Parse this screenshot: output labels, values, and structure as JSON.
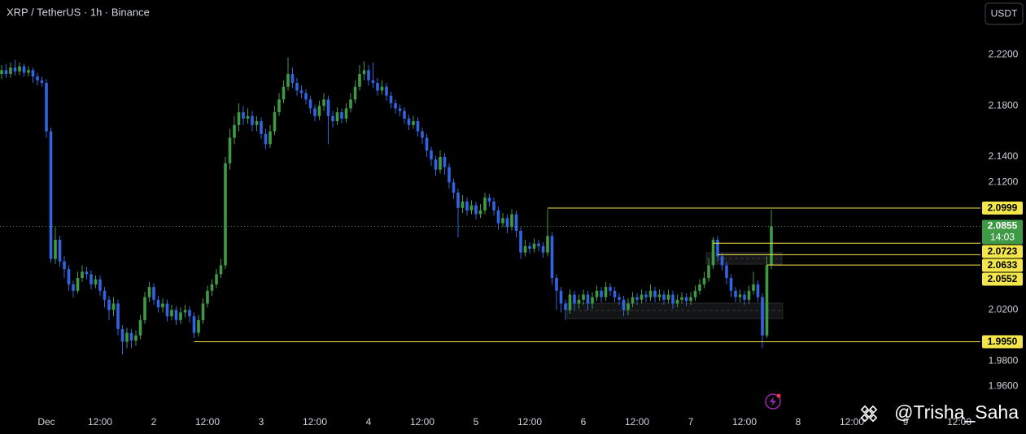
{
  "chart_data": {
    "type": "candlestick",
    "title": "XRP / TetherUS · 1h · Binance",
    "currency": "USDT",
    "categories": [
      null,
      null,
      null,
      null,
      null,
      null,
      null,
      null,
      null,
      null,
      "Dec",
      null,
      null,
      null,
      null,
      null,
      null,
      null,
      null,
      null,
      null,
      null,
      "12:00",
      null,
      null,
      null,
      null,
      null,
      null,
      null,
      null,
      null,
      null,
      null,
      "2",
      null,
      null,
      null,
      null,
      null,
      null,
      null,
      null,
      null,
      null,
      null,
      "12:00",
      null,
      null,
      null,
      null,
      null,
      null,
      null,
      null,
      null,
      null,
      null,
      "3",
      null,
      null,
      null,
      null,
      null,
      null,
      null,
      null,
      null,
      null,
      null,
      "12:00",
      null,
      null,
      null,
      null,
      null,
      null,
      null,
      null,
      null,
      null,
      null,
      "4",
      null,
      null,
      null,
      null,
      null,
      null,
      null,
      null,
      null,
      null,
      null,
      "12:00",
      null,
      null,
      null,
      null,
      null,
      null,
      null,
      null,
      null,
      null,
      null,
      "5",
      null,
      null,
      null,
      null,
      null,
      null,
      null,
      null,
      null,
      null,
      null,
      "12:00",
      null,
      null,
      null,
      null,
      null,
      null,
      null,
      null,
      null,
      null,
      null,
      "6",
      null,
      null,
      null,
      null,
      null,
      null,
      null,
      null,
      null,
      null,
      null,
      "12:00",
      null,
      null,
      null,
      null,
      null,
      null,
      null,
      null,
      null,
      null,
      null,
      "7",
      null,
      null,
      null,
      null,
      null,
      null,
      null,
      null,
      null,
      null,
      null,
      "12:00",
      null,
      null,
      null,
      null,
      null,
      null,
      null,
      null,
      null,
      null,
      null,
      "8",
      null,
      null,
      null,
      null,
      null,
      null,
      null,
      null,
      null,
      null,
      null,
      "12:00",
      null,
      null,
      null,
      null,
      null,
      null,
      null,
      null,
      null,
      null,
      null,
      "9",
      null,
      null,
      null,
      null,
      null,
      null,
      null,
      null,
      null,
      null,
      null,
      "12:00",
      null,
      null,
      null
    ],
    "open": [
      2.205,
      2.208,
      2.205,
      2.21,
      2.207,
      2.211,
      2.206,
      2.208,
      2.203,
      2.2,
      2.198,
      2.16,
      2.06,
      2.075,
      2.058,
      2.052,
      2.04,
      2.035,
      2.045,
      2.05,
      2.048,
      2.04,
      2.044,
      2.035,
      2.028,
      2.02,
      2.025,
      2.005,
      1.995,
      2.002,
      1.996,
      2.0,
      2.012,
      2.03,
      2.038,
      2.028,
      2.022,
      2.025,
      2.015,
      2.02,
      2.012,
      2.018,
      2.02,
      2.015,
      2.002,
      2.012,
      2.025,
      2.035,
      2.04,
      2.048,
      2.055,
      2.135,
      2.155,
      2.165,
      2.175,
      2.17,
      2.172,
      2.165,
      2.168,
      2.158,
      2.15,
      2.16,
      2.175,
      2.185,
      2.195,
      2.205,
      2.198,
      2.192,
      2.19,
      2.185,
      2.178,
      2.172,
      2.18,
      2.185,
      2.172,
      2.168,
      2.175,
      2.17,
      2.178,
      2.185,
      2.195,
      2.205,
      2.208,
      2.2,
      2.198,
      2.192,
      2.195,
      2.188,
      2.182,
      2.178,
      2.176,
      2.17,
      2.165,
      2.168,
      2.16,
      2.155,
      2.145,
      2.138,
      2.13,
      2.14,
      2.132,
      2.12,
      2.112,
      2.1,
      2.105,
      2.098,
      2.102,
      2.095,
      2.098,
      2.108,
      2.105,
      2.098,
      2.088,
      2.092,
      2.085,
      2.095,
      2.082,
      2.065,
      2.07,
      2.068,
      2.072,
      2.07,
      2.065,
      2.078,
      2.045,
      2.035,
      2.025,
      2.02,
      2.032,
      2.025,
      2.028,
      2.032,
      2.025,
      2.03,
      2.035,
      2.03,
      2.038,
      2.035,
      2.03,
      2.028,
      2.02,
      2.025,
      2.03,
      2.028,
      2.032,
      2.03,
      2.035,
      2.03,
      2.032,
      2.028,
      2.032,
      2.025,
      2.028,
      2.03,
      2.027,
      2.03,
      2.035,
      2.04,
      2.045,
      2.055,
      2.075,
      2.062,
      2.055,
      2.045,
      2.035,
      2.03,
      2.032,
      2.028,
      2.035,
      2.04,
      2.03,
      2.0,
      2.055,
      null,
      null,
      null,
      null,
      null,
      null,
      null,
      null,
      null,
      null,
      null,
      null,
      null,
      null,
      null,
      null,
      null,
      null,
      null,
      null,
      null,
      null,
      null,
      null,
      null,
      null,
      null,
      null,
      null,
      null,
      null,
      null,
      null,
      null,
      null,
      null,
      null,
      null,
      null,
      null,
      null,
      null,
      null,
      null,
      null
    ],
    "high": [
      2.212,
      2.213,
      2.214,
      2.216,
      2.214,
      2.213,
      2.211,
      2.21,
      2.206,
      2.203,
      2.201,
      2.163,
      2.085,
      2.078,
      2.062,
      2.055,
      2.043,
      2.05,
      2.055,
      2.054,
      2.051,
      2.047,
      2.047,
      2.038,
      2.031,
      2.03,
      2.028,
      2.008,
      2.006,
      2.005,
      2.004,
      2.016,
      2.034,
      2.042,
      2.041,
      2.031,
      2.029,
      2.028,
      2.024,
      2.023,
      2.022,
      2.024,
      2.023,
      2.018,
      2.016,
      2.029,
      2.039,
      2.044,
      2.052,
      2.06,
      2.14,
      2.162,
      2.172,
      2.182,
      2.18,
      2.178,
      2.176,
      2.172,
      2.171,
      2.162,
      2.165,
      2.18,
      2.19,
      2.2,
      2.218,
      2.21,
      2.202,
      2.196,
      2.193,
      2.188,
      2.181,
      2.184,
      2.19,
      2.188,
      2.176,
      2.179,
      2.178,
      2.182,
      2.19,
      2.2,
      2.212,
      2.215,
      2.212,
      2.214,
      2.202,
      2.2,
      2.198,
      2.191,
      2.185,
      2.181,
      2.179,
      2.173,
      2.172,
      2.171,
      2.163,
      2.158,
      2.148,
      2.141,
      2.145,
      2.143,
      2.135,
      2.123,
      2.115,
      2.11,
      2.108,
      2.106,
      2.105,
      2.103,
      2.112,
      2.111,
      2.108,
      2.101,
      2.096,
      2.095,
      2.099,
      2.098,
      2.085,
      2.075,
      2.073,
      2.076,
      2.075,
      2.073,
      2.099,
      2.081,
      2.048,
      2.038,
      2.028,
      2.036,
      2.035,
      2.032,
      2.036,
      2.035,
      2.034,
      2.039,
      2.038,
      2.042,
      2.041,
      2.038,
      2.033,
      2.031,
      2.029,
      2.034,
      2.033,
      2.036,
      2.035,
      2.04,
      2.038,
      2.036,
      2.035,
      2.036,
      2.035,
      2.032,
      2.034,
      2.033,
      2.034,
      2.039,
      2.044,
      2.05,
      2.06,
      2.077,
      2.078,
      2.065,
      2.058,
      2.048,
      2.038,
      2.036,
      2.035,
      2.039,
      2.05,
      2.043,
      2.033,
      2.062,
      2.0985,
      null,
      null,
      null,
      null,
      null,
      null,
      null,
      null,
      null,
      null,
      null,
      null,
      null,
      null,
      null,
      null,
      null,
      null,
      null,
      null,
      null,
      null,
      null,
      null,
      null,
      null,
      null,
      null,
      null,
      null,
      null,
      null,
      null,
      null,
      null,
      null,
      null,
      null,
      null,
      null,
      null,
      null,
      null,
      null,
      null
    ],
    "low": [
      2.201,
      2.202,
      2.202,
      2.204,
      2.204,
      2.203,
      2.203,
      2.198,
      2.196,
      2.195,
      2.155,
      2.057,
      2.056,
      2.054,
      2.045,
      2.035,
      2.03,
      2.033,
      2.042,
      2.044,
      2.036,
      2.037,
      2.031,
      2.022,
      2.012,
      2.015,
      2.0,
      1.985,
      1.99,
      1.99,
      1.992,
      1.997,
      2.009,
      2.026,
      2.024,
      2.018,
      2.018,
      2.011,
      2.012,
      2.008,
      2.009,
      2.014,
      2.01,
      1.998,
      1.999,
      2.009,
      2.022,
      2.031,
      2.037,
      2.045,
      2.052,
      2.13,
      2.15,
      2.16,
      2.165,
      2.166,
      2.16,
      2.16,
      2.154,
      2.146,
      2.147,
      2.157,
      2.172,
      2.182,
      2.192,
      2.194,
      2.188,
      2.186,
      2.181,
      2.174,
      2.168,
      2.169,
      2.176,
      2.15,
      2.163,
      2.165,
      2.166,
      2.167,
      2.175,
      2.182,
      2.192,
      2.2,
      2.196,
      2.194,
      2.188,
      2.189,
      2.184,
      2.178,
      2.174,
      2.172,
      2.166,
      2.161,
      2.162,
      2.156,
      2.15,
      2.14,
      2.133,
      2.125,
      2.127,
      2.126,
      2.115,
      2.107,
      2.077,
      2.096,
      2.094,
      2.095,
      2.091,
      2.092,
      2.095,
      2.101,
      2.094,
      2.083,
      2.085,
      2.08,
      2.082,
      2.077,
      2.06,
      2.062,
      2.064,
      2.065,
      2.066,
      2.061,
      2.062,
      2.04,
      2.02,
      2.018,
      2.012,
      2.017,
      2.02,
      2.021,
      2.024,
      2.02,
      2.021,
      2.027,
      2.026,
      2.027,
      2.031,
      2.026,
      2.024,
      2.015,
      2.016,
      2.022,
      2.024,
      2.025,
      2.026,
      2.027,
      2.026,
      2.027,
      2.024,
      2.025,
      2.021,
      2.022,
      2.025,
      2.023,
      2.024,
      2.027,
      2.032,
      2.037,
      2.042,
      2.052,
      2.058,
      2.051,
      2.04,
      2.03,
      2.026,
      2.026,
      2.024,
      2.025,
      2.032,
      2.026,
      1.99,
      1.998,
      2.052,
      null,
      null,
      null,
      null,
      null,
      null,
      null,
      null,
      null,
      null,
      null,
      null,
      null,
      null,
      null,
      null,
      null,
      null,
      null,
      null,
      null,
      null,
      null,
      null,
      null,
      null,
      null,
      null,
      null,
      null,
      null,
      null,
      null,
      null,
      null,
      null,
      null,
      null,
      null,
      null,
      null,
      null,
      null,
      null,
      null
    ],
    "close": [
      2.208,
      2.205,
      2.21,
      2.207,
      2.211,
      2.206,
      2.208,
      2.203,
      2.2,
      2.198,
      2.16,
      2.06,
      2.075,
      2.058,
      2.052,
      2.04,
      2.035,
      2.045,
      2.05,
      2.048,
      2.04,
      2.044,
      2.035,
      2.028,
      2.02,
      2.025,
      2.005,
      1.995,
      2.002,
      1.996,
      2.0,
      2.012,
      2.03,
      2.038,
      2.028,
      2.022,
      2.025,
      2.015,
      2.02,
      2.012,
      2.018,
      2.02,
      2.015,
      2.002,
      2.012,
      2.025,
      2.035,
      2.04,
      2.048,
      2.055,
      2.135,
      2.155,
      2.165,
      2.175,
      2.17,
      2.172,
      2.165,
      2.168,
      2.158,
      2.15,
      2.16,
      2.175,
      2.185,
      2.195,
      2.205,
      2.198,
      2.192,
      2.19,
      2.185,
      2.178,
      2.172,
      2.18,
      2.185,
      2.172,
      2.168,
      2.175,
      2.17,
      2.178,
      2.185,
      2.195,
      2.205,
      2.208,
      2.2,
      2.198,
      2.192,
      2.195,
      2.188,
      2.182,
      2.178,
      2.176,
      2.17,
      2.165,
      2.168,
      2.16,
      2.155,
      2.145,
      2.138,
      2.13,
      2.14,
      2.132,
      2.12,
      2.112,
      2.1,
      2.105,
      2.098,
      2.102,
      2.095,
      2.098,
      2.108,
      2.105,
      2.098,
      2.088,
      2.092,
      2.085,
      2.095,
      2.082,
      2.065,
      2.07,
      2.068,
      2.072,
      2.07,
      2.065,
      2.078,
      2.045,
      2.035,
      2.025,
      2.02,
      2.032,
      2.025,
      2.028,
      2.032,
      2.025,
      2.03,
      2.035,
      2.03,
      2.038,
      2.035,
      2.03,
      2.028,
      2.02,
      2.025,
      2.03,
      2.028,
      2.032,
      2.03,
      2.035,
      2.03,
      2.032,
      2.028,
      2.032,
      2.025,
      2.028,
      2.03,
      2.027,
      2.03,
      2.035,
      2.04,
      2.045,
      2.055,
      2.075,
      2.062,
      2.055,
      2.045,
      2.035,
      2.03,
      2.032,
      2.028,
      2.035,
      2.04,
      2.03,
      2.0,
      2.055,
      2.0855,
      null,
      null,
      null,
      null,
      null,
      null,
      null,
      null,
      null,
      null,
      null,
      null,
      null,
      null,
      null,
      null,
      null,
      null,
      null,
      null,
      null,
      null,
      null,
      null,
      null,
      null,
      null,
      null,
      null,
      null,
      null,
      null,
      null,
      null,
      null,
      null,
      null,
      null,
      null,
      null,
      null,
      null,
      null,
      null,
      null
    ],
    "up_color": "#3f9a45",
    "down_color": "#3064e0",
    "ylim": [
      1.938,
      2.263
    ],
    "yticks": [
      {
        "value": 1.96,
        "label": "1.9600"
      },
      {
        "value": 1.98,
        "label": "1.9800"
      },
      {
        "value": 2.02,
        "label": "2.0200"
      },
      {
        "value": 2.12,
        "label": "2.1200"
      },
      {
        "value": 2.14,
        "label": "2.1400"
      },
      {
        "value": 2.18,
        "label": "2.1800"
      },
      {
        "value": 2.22,
        "label": "2.2200"
      }
    ],
    "levels": [
      {
        "value": 2.0999,
        "label": "2.0999"
      },
      {
        "value": 2.0723,
        "label": "2.0723"
      },
      {
        "value": 2.0633,
        "label": "2.0633"
      },
      {
        "value": 2.0552,
        "label": "2.0552"
      },
      {
        "value": 1.995,
        "label": "1.9950"
      }
    ],
    "level_color": "#f2e64a",
    "last_price": {
      "value": 2.0855,
      "countdown": "14:03"
    },
    "last_color": "#3f9a45",
    "watermark": "@Trisha_Saha"
  }
}
